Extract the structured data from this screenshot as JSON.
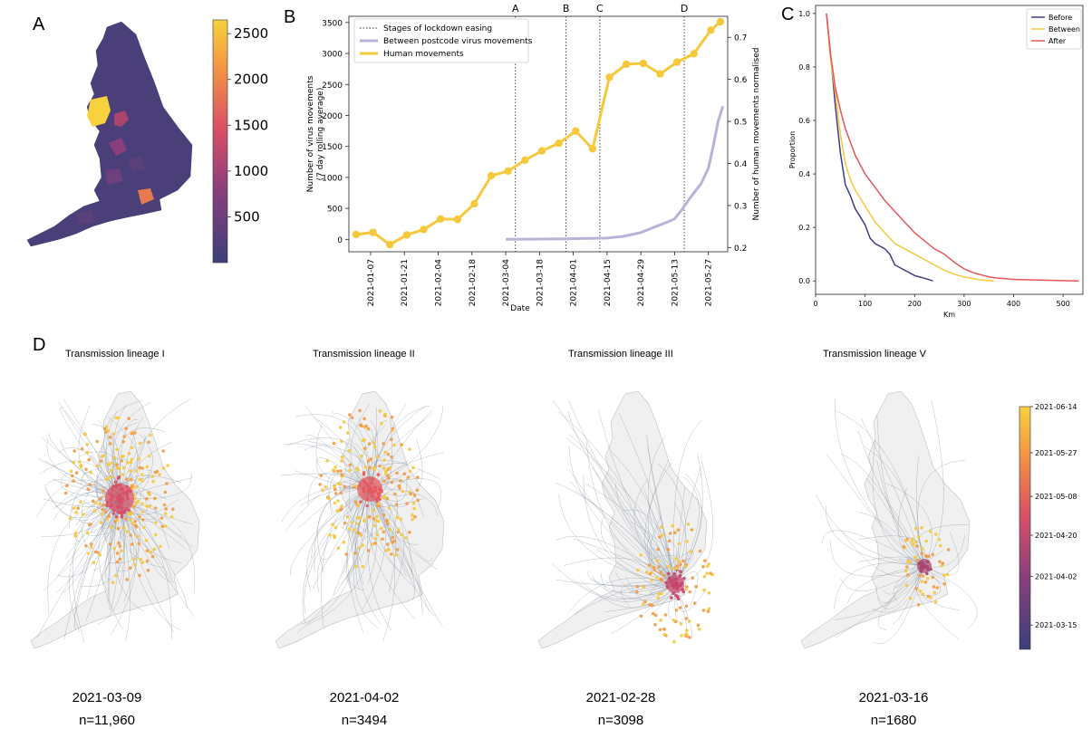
{
  "panels": {
    "a": "A",
    "b": "B",
    "c": "C",
    "d": "D"
  },
  "colors": {
    "gold": "#f6c83c",
    "lavender": "#b7b3d9",
    "navy": "#3b3f7a",
    "blue_dark": "#3f3c86",
    "red": "#e8565c",
    "orange": "#f29b43",
    "grey_line": "#7d8a99",
    "land": "#f0f0f0"
  },
  "chart_data": [
    {
      "panel": "A",
      "type": "heatmap",
      "colorbar": {
        "min": 0,
        "max": 2650,
        "ticks": [
          500,
          1000,
          1500,
          2000,
          2500
        ],
        "colormap": "plasma-like"
      }
    },
    {
      "panel": "B",
      "type": "line",
      "xlabel": "Date",
      "ylabel": "Number of virus movements\n(7 day rolling average)",
      "ylabel_right": "Number of human movements normalised",
      "ylim": [
        -200,
        3600
      ],
      "ylim_right": [
        0.19,
        0.75
      ],
      "x_ticks": [
        "2021-01-07",
        "2021-01-21",
        "2021-02-04",
        "2021-02-18",
        "2021-03-04",
        "2021-03-18",
        "2021-04-01",
        "2021-04-15",
        "2021-04-29",
        "2021-05-13",
        "2021-05-27"
      ],
      "y_ticks": [
        0,
        500,
        1000,
        1500,
        2000,
        2500,
        3000,
        3500
      ],
      "y_ticks_right": [
        0.2,
        0.3,
        0.4,
        0.5,
        0.6,
        0.7
      ],
      "legend": {
        "placement": "top-left",
        "entries": [
          "Stages of lockdown easing",
          "Between postcode virus movements",
          "Human movements"
        ]
      },
      "stages": [
        {
          "label": "A",
          "date": "2021-03-08"
        },
        {
          "label": "B",
          "date": "2021-03-29"
        },
        {
          "label": "C",
          "date": "2021-04-12"
        },
        {
          "label": "D",
          "date": "2021-05-17"
        }
      ],
      "series": [
        {
          "name": "Human movements",
          "axis": "right",
          "color": "#f6c83c",
          "x": [
            "2021-01-01",
            "2021-01-08",
            "2021-01-15",
            "2021-01-22",
            "2021-01-29",
            "2021-02-05",
            "2021-02-12",
            "2021-02-19",
            "2021-02-26",
            "2021-03-05",
            "2021-03-12",
            "2021-03-19",
            "2021-03-26",
            "2021-04-02",
            "2021-04-09",
            "2021-04-16",
            "2021-04-23",
            "2021-04-30",
            "2021-05-07",
            "2021-05-14",
            "2021-05-21",
            "2021-05-28",
            "2021-06-01"
          ],
          "y": [
            0.231,
            0.236,
            0.207,
            0.23,
            0.243,
            0.268,
            0.267,
            0.304,
            0.371,
            0.382,
            0.408,
            0.43,
            0.448,
            0.477,
            0.435,
            0.605,
            0.636,
            0.638,
            0.613,
            0.641,
            0.661,
            0.717,
            0.737
          ]
        },
        {
          "name": "Between postcode virus movements",
          "axis": "left",
          "color": "#b7b3d9",
          "x": [
            "2021-03-04",
            "2021-03-18",
            "2021-04-01",
            "2021-04-15",
            "2021-04-22",
            "2021-04-29",
            "2021-05-06",
            "2021-05-10",
            "2021-05-13",
            "2021-05-16",
            "2021-05-20",
            "2021-05-24",
            "2021-05-27",
            "2021-05-29",
            "2021-05-31",
            "2021-06-02"
          ],
          "y": [
            0,
            5,
            10,
            20,
            50,
            110,
            220,
            280,
            330,
            480,
            700,
            900,
            1150,
            1500,
            1900,
            2150
          ]
        }
      ]
    },
    {
      "panel": "C",
      "type": "line",
      "xlabel": "Km",
      "ylabel": "Proportion",
      "xlim": [
        0,
        540
      ],
      "ylim": [
        -0.05,
        1.03
      ],
      "x_ticks": [
        0,
        100,
        200,
        300,
        400,
        500
      ],
      "y_ticks": [
        0.0,
        0.2,
        0.4,
        0.6,
        0.8,
        1.0
      ],
      "legend": {
        "placement": "top-right",
        "entries": [
          "Before",
          "Between",
          "After"
        ]
      },
      "series": [
        {
          "name": "Before",
          "color": "#3f3c86",
          "x": [
            22,
            30,
            40,
            50,
            60,
            70,
            80,
            90,
            100,
            110,
            120,
            140,
            150,
            160,
            180,
            200,
            220,
            237
          ],
          "y": [
            1.0,
            0.85,
            0.65,
            0.48,
            0.36,
            0.32,
            0.27,
            0.24,
            0.21,
            0.16,
            0.14,
            0.12,
            0.1,
            0.06,
            0.04,
            0.02,
            0.01,
            0.0
          ]
        },
        {
          "name": "Between",
          "color": "#f6c83c",
          "x": [
            22,
            30,
            40,
            50,
            60,
            70,
            80,
            100,
            120,
            140,
            160,
            180,
            200,
            220,
            240,
            260,
            280,
            300,
            330,
            360
          ],
          "y": [
            1.0,
            0.83,
            0.7,
            0.55,
            0.44,
            0.38,
            0.34,
            0.28,
            0.22,
            0.18,
            0.14,
            0.12,
            0.1,
            0.08,
            0.06,
            0.04,
            0.025,
            0.015,
            0.005,
            0.0
          ]
        },
        {
          "name": "After",
          "color": "#e8565c",
          "x": [
            22,
            30,
            40,
            50,
            60,
            80,
            100,
            120,
            140,
            160,
            180,
            200,
            220,
            240,
            260,
            280,
            300,
            320,
            340,
            360,
            400,
            450,
            500,
            532
          ],
          "y": [
            1.0,
            0.85,
            0.72,
            0.64,
            0.57,
            0.47,
            0.4,
            0.35,
            0.3,
            0.26,
            0.22,
            0.18,
            0.15,
            0.12,
            0.1,
            0.07,
            0.045,
            0.03,
            0.02,
            0.012,
            0.006,
            0.003,
            0.001,
            0.0
          ]
        }
      ]
    },
    {
      "panel": "D",
      "type": "heatmap",
      "colorbar": {
        "ticks": [
          "2021-03-15",
          "2021-04-02",
          "2021-04-20",
          "2021-05-08",
          "2021-05-27",
          "2021-06-14"
        ]
      },
      "maps": [
        {
          "title": "Transmission lineage I",
          "date": "2021-03-09",
          "n": "n=11,960"
        },
        {
          "title": "Transmission lineage II",
          "date": "2021-04-02",
          "n": "n=3494"
        },
        {
          "title": "Transmission lineage III",
          "date": "2021-02-28",
          "n": "n=3098"
        },
        {
          "title": "Transmission lineage V",
          "date": "2021-03-16",
          "n": "n=1680"
        }
      ]
    }
  ]
}
